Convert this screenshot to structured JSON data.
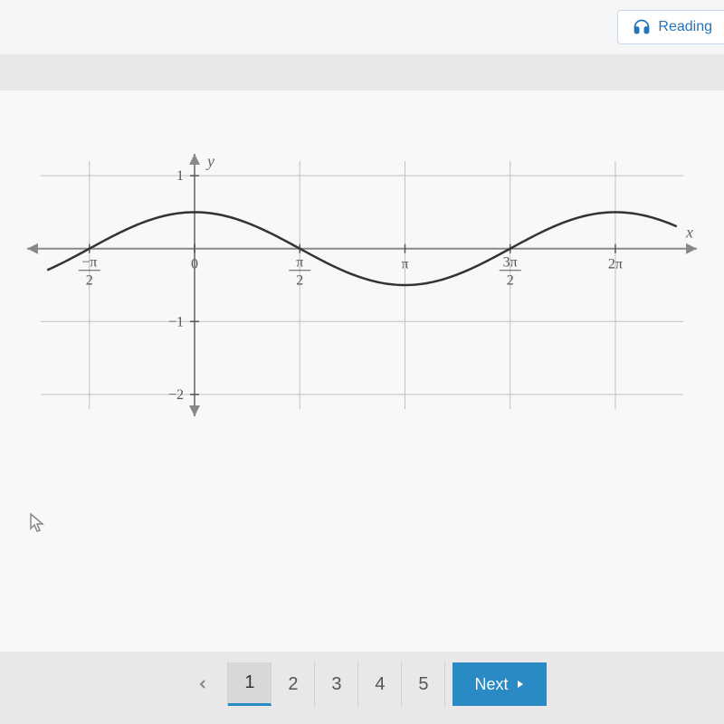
{
  "toolbar": {
    "reading_label": "Reading"
  },
  "chart": {
    "type": "line",
    "function": "0.5*cos(x)",
    "x_axis": {
      "label": "x",
      "ticks": [
        {
          "value": -1.5708,
          "numerator": "−π",
          "denominator": "2"
        },
        {
          "value": 0,
          "label": "0"
        },
        {
          "value": 1.5708,
          "numerator": "π",
          "denominator": "2"
        },
        {
          "value": 3.1416,
          "label": "π"
        },
        {
          "value": 4.7124,
          "numerator": "3π",
          "denominator": "2"
        },
        {
          "value": 6.2832,
          "label": "2π"
        }
      ],
      "range": [
        -2.5,
        7.5
      ]
    },
    "y_axis": {
      "label": "y",
      "ticks": [
        {
          "value": 1,
          "label": "1"
        },
        {
          "value": -1,
          "label": "−1"
        },
        {
          "value": -2,
          "label": "−2"
        }
      ],
      "range": [
        -2.3,
        1.3
      ]
    },
    "amplitude": 0.5,
    "grid_v_lines": [
      -1.5708,
      0,
      1.5708,
      3.1416,
      4.7124,
      6.2832
    ],
    "grid_h_lines": [
      1,
      0,
      -1,
      -2
    ],
    "colors": {
      "grid": "#c0c0c0",
      "axis": "#888888",
      "curve": "#333333",
      "text": "#555555",
      "background": "#f8f8f8"
    }
  },
  "pagination": {
    "pages": [
      "1",
      "2",
      "3",
      "4",
      "5"
    ],
    "current": 1,
    "next_label": "Next"
  }
}
